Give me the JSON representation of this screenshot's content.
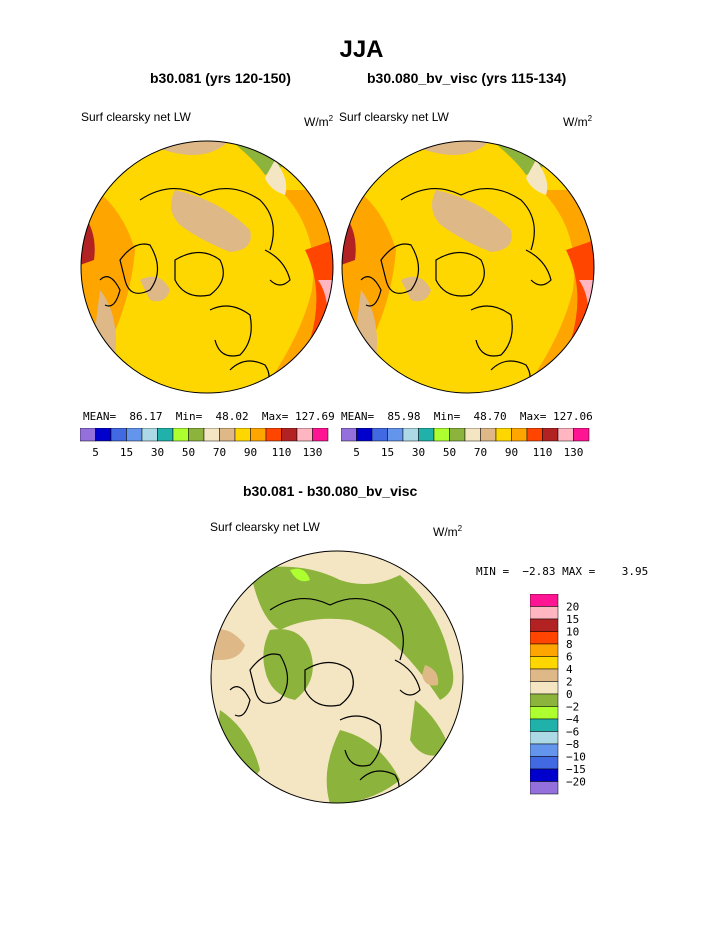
{
  "title": "JJA",
  "colors": {
    "abs_palette": [
      "#9370DB",
      "#0000CD",
      "#4169E1",
      "#6495ED",
      "#ADD8E6",
      "#20B2AA",
      "#ADFF2F",
      "#8CB43C",
      "#F5E6C3",
      "#DEB887",
      "#FFD700",
      "#FFA500",
      "#FF4500",
      "#B22222",
      "#FFB6C1",
      "#FF1493"
    ],
    "diff_palette": [
      "#9370DB",
      "#0000CD",
      "#4169E1",
      "#6495ED",
      "#ADD8E6",
      "#20B2AA",
      "#ADFF2F",
      "#8CB43C",
      "#F5E6C3",
      "#DEB887",
      "#FFD700",
      "#FFA500",
      "#FF4500",
      "#B22222",
      "#FFB6C1",
      "#FF1493"
    ],
    "coast": "#000000"
  },
  "chart_data": [
    {
      "type": "heatmap",
      "projection": "north-polar-stereographic",
      "title": "b30.081 (yrs 120-150)",
      "variable": "Surf clearsky net LW",
      "units_base": "W/m",
      "units_exp": "2",
      "stats": {
        "mean_label": "MEAN=",
        "mean": "86.17",
        "min_label": "Min=",
        "min": "48.02",
        "max_label": "Max=",
        "max": "127.69"
      },
      "levels": [
        5,
        10,
        15,
        20,
        30,
        40,
        50,
        60,
        70,
        80,
        90,
        100,
        110,
        120,
        130
      ],
      "level_labels": [
        "5",
        "15",
        "30",
        "50",
        "70",
        "90",
        "110",
        "130"
      ],
      "field_pattern": "abs",
      "legend": "bottom-horizontal"
    },
    {
      "type": "heatmap",
      "projection": "north-polar-stereographic",
      "title": "b30.080_bv_visc (yrs 115-134)",
      "variable": "Surf clearsky net LW",
      "units_base": "W/m",
      "units_exp": "2",
      "stats": {
        "mean_label": "MEAN=",
        "mean": "85.98",
        "min_label": "Min=",
        "min": "48.70",
        "max_label": "Max=",
        "max": "127.06"
      },
      "levels": [
        5,
        10,
        15,
        20,
        30,
        40,
        50,
        60,
        70,
        80,
        90,
        100,
        110,
        120,
        130
      ],
      "level_labels": [
        "5",
        "15",
        "30",
        "50",
        "70",
        "90",
        "110",
        "130"
      ],
      "field_pattern": "abs",
      "legend": "bottom-horizontal"
    },
    {
      "type": "heatmap",
      "projection": "north-polar-stereographic",
      "title": "b30.081 - b30.080_bv_visc",
      "variable": "Surf clearsky net LW",
      "units_base": "W/m",
      "units_exp": "2",
      "stats": {
        "min_label": "MIN =",
        "min": "−2.83",
        "max_label": "MAX =",
        "max": "3.95"
      },
      "levels": [
        -20,
        -15,
        -10,
        -8,
        -6,
        -4,
        -2,
        0,
        2,
        4,
        6,
        8,
        10,
        15,
        20
      ],
      "level_labels": [
        "20",
        "15",
        "10",
        "8",
        "6",
        "4",
        "2",
        "0",
        "−2",
        "−4",
        "−6",
        "−8",
        "−10",
        "−15",
        "−20"
      ],
      "field_pattern": "diff",
      "legend": "right-vertical"
    }
  ]
}
